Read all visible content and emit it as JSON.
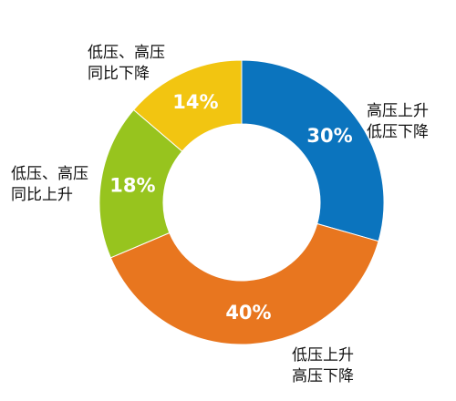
{
  "chart_data": {
    "type": "pie",
    "donut": true,
    "slices": [
      {
        "lines": [
          "高压上升",
          "低压下降"
        ],
        "value": 30,
        "value_label": "30%",
        "color": "#0B74BE"
      },
      {
        "lines": [
          "低压上升",
          "高压下降"
        ],
        "value": 40,
        "value_label": "40%",
        "color": "#E8761F"
      },
      {
        "lines": [
          "低压、高压",
          "同比上升"
        ],
        "value": 18,
        "value_label": "18%",
        "color": "#97C41E"
      },
      {
        "lines": [
          "低压、高压",
          "同比下降"
        ],
        "value": 14,
        "value_label": "14%",
        "color": "#F2C511"
      }
    ]
  }
}
